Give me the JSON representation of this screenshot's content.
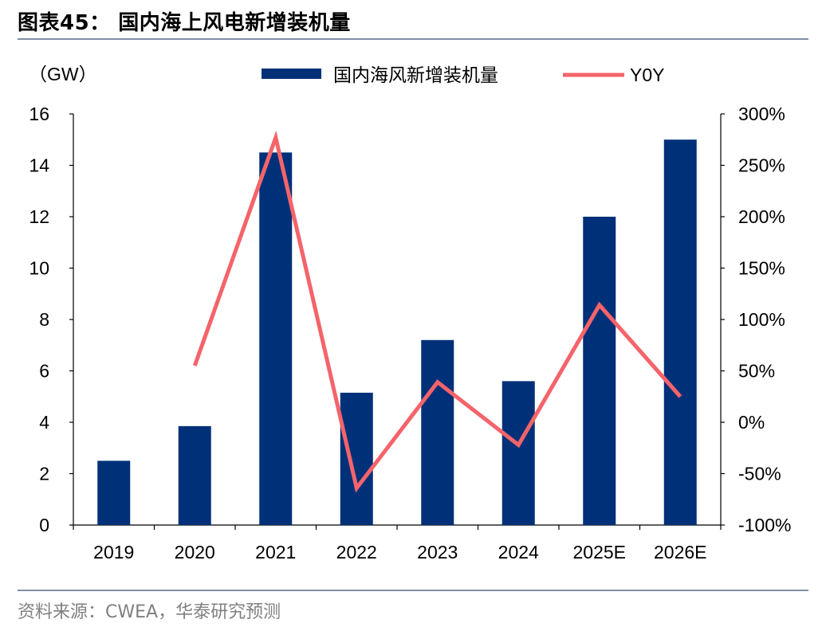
{
  "figure": {
    "title": "图表45：  国内海上风电新增装机量",
    "source": "资料来源：CWEA，华泰研究预测"
  },
  "chart_data": {
    "type": "bar",
    "categories": [
      "2019",
      "2020",
      "2021",
      "2022",
      "2023",
      "2024",
      "2025E",
      "2026E"
    ],
    "unit_label": "（GW）",
    "series": [
      {
        "name": "国内海风新增装机量",
        "type": "bar",
        "axis": "left",
        "color": "#003078",
        "values": [
          2.5,
          3.85,
          14.5,
          5.15,
          7.2,
          5.6,
          12.0,
          15.0
        ]
      },
      {
        "name": "Y0Y",
        "type": "line",
        "axis": "right",
        "color": "#f4646a",
        "values": [
          null,
          0.55,
          2.77,
          -0.64,
          0.39,
          -0.22,
          1.14,
          0.25
        ]
      }
    ],
    "y_left": {
      "min": 0,
      "max": 16,
      "ticks": [
        "0",
        "2",
        "4",
        "6",
        "8",
        "10",
        "12",
        "14",
        "16"
      ]
    },
    "y_right": {
      "min": -1.0,
      "max": 3.0,
      "ticks": [
        "-100%",
        "-50%",
        "0%",
        "50%",
        "100%",
        "150%",
        "200%",
        "250%",
        "300%"
      ]
    },
    "grid": false,
    "legend_position": "top"
  }
}
